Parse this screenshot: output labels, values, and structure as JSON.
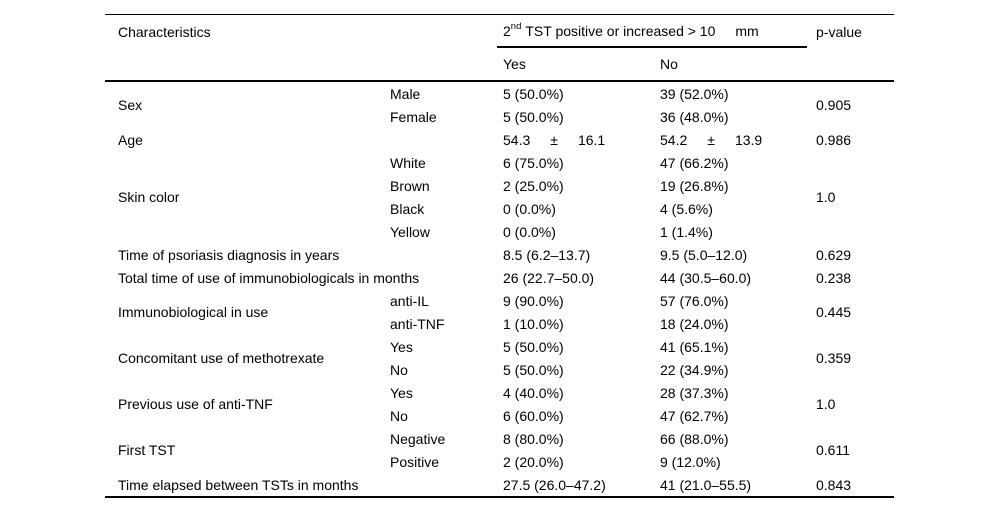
{
  "colors": {
    "text": "#000000",
    "rule": "#000000",
    "background": "#ffffff"
  },
  "table": {
    "header": {
      "characteristics": "Characteristics",
      "span_prefix": "2",
      "span_sup": "nd",
      "span_rest": "TST positive or increased > 10",
      "span_unit": "mm",
      "yes": "Yes",
      "no": "No",
      "p_value": "p-value"
    },
    "groups": [
      {
        "label": "Sex",
        "rows": [
          {
            "sub": "Male",
            "yes": "5 (50.0%)",
            "no": "39 (52.0%)"
          },
          {
            "sub": "Female",
            "yes": "5 (50.0%)",
            "no": "36 (48.0%)"
          }
        ],
        "p": "0.905"
      },
      {
        "label": "Age",
        "yes": {
          "mean": "54.3",
          "pm": "±",
          "sd": "16.1"
        },
        "no": {
          "mean": "54.2",
          "pm": "±",
          "sd": "13.9"
        },
        "p": "0.986"
      },
      {
        "label": "Skin color",
        "rows": [
          {
            "sub": "White",
            "yes": "6 (75.0%)",
            "no": "47 (66.2%)"
          },
          {
            "sub": "Brown",
            "yes": "2 (25.0%)",
            "no": "19 (26.8%)"
          },
          {
            "sub": "Black",
            "yes": "0 (0.0%)",
            "no": "4 (5.6%)"
          },
          {
            "sub": "Yellow",
            "yes": "0 (0.0%)",
            "no": "1 (1.4%)"
          }
        ],
        "p": "1.0"
      },
      {
        "label": "Time of psoriasis diagnosis in years",
        "yes": "8.5 (6.2–13.7)",
        "no": "9.5 (5.0–12.0)",
        "p": "0.629"
      },
      {
        "label": "Total time of use of immunobiologicals in months",
        "yes": "26 (22.7–50.0)",
        "no": "44 (30.5–60.0)",
        "p": "0.238"
      },
      {
        "label": "Immunobiological in use",
        "rows": [
          {
            "sub": "anti-IL",
            "yes": "9 (90.0%)",
            "no": "57 (76.0%)"
          },
          {
            "sub": "anti-TNF",
            "yes": "1 (10.0%)",
            "no": "18 (24.0%)"
          }
        ],
        "p": "0.445"
      },
      {
        "label": "Concomitant use of methotrexate",
        "rows": [
          {
            "sub": "Yes",
            "yes": "5 (50.0%)",
            "no": "41 (65.1%)"
          },
          {
            "sub": "No",
            "yes": "5 (50.0%)",
            "no": "22 (34.9%)"
          }
        ],
        "p": "0.359"
      },
      {
        "label": "Previous use of anti-TNF",
        "rows": [
          {
            "sub": "Yes",
            "yes": "4 (40.0%)",
            "no": "28 (37.3%)"
          },
          {
            "sub": "No",
            "yes": "6 (60.0%)",
            "no": "47 (62.7%)"
          }
        ],
        "p": "1.0"
      },
      {
        "label": "First TST",
        "rows": [
          {
            "sub": "Negative",
            "yes": "8 (80.0%)",
            "no": "66 (88.0%)"
          },
          {
            "sub": "Positive",
            "yes": "2 (20.0%)",
            "no": "9 (12.0%)"
          }
        ],
        "p": "0.611"
      },
      {
        "label": "Time elapsed between TSTs in months",
        "yes": "27.5 (26.0–47.2)",
        "no": "41 (21.0–55.5)",
        "p": "0.843"
      }
    ]
  }
}
